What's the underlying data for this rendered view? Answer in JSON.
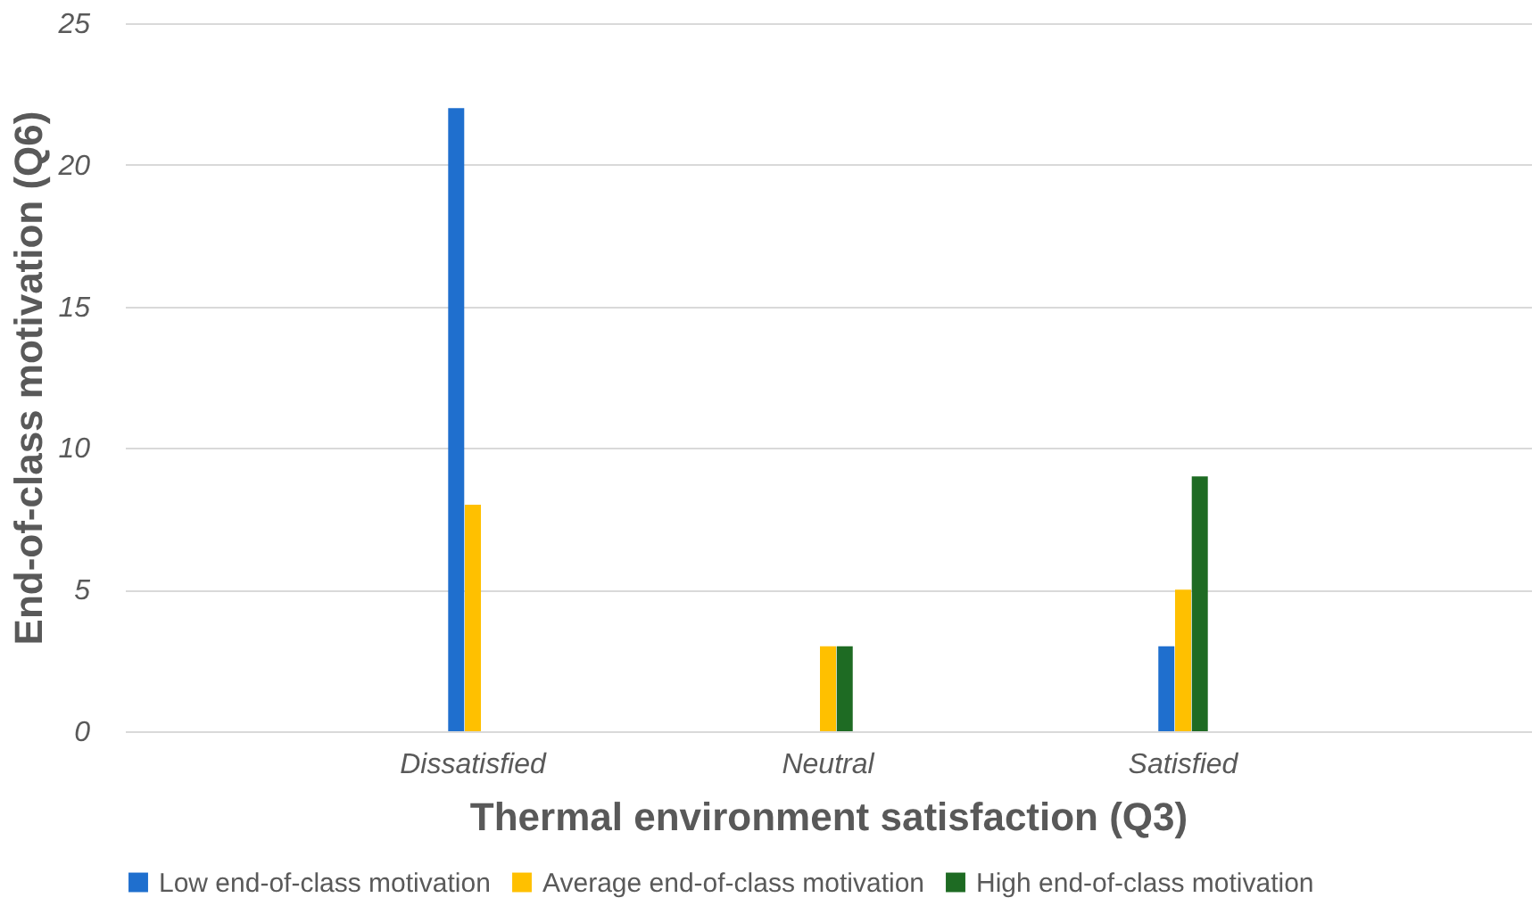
{
  "chart_data": {
    "type": "bar",
    "xlabel": "Thermal environment satisfaction (Q3)",
    "ylabel": "End-of-class motivation (Q6)",
    "categories": [
      "Dissatisfied",
      "Neutral",
      "Satisfied"
    ],
    "series": [
      {
        "name": "Low end-of-class motivation",
        "color": "#1f6fce",
        "values": [
          22,
          0,
          3
        ]
      },
      {
        "name": "Average end-of-class motivation",
        "color": "#ffc000",
        "values": [
          8,
          3,
          5
        ]
      },
      {
        "name": "High end-of-class motivation",
        "color": "#1e6b23",
        "values": [
          0,
          3,
          9
        ]
      }
    ],
    "ylim": [
      0,
      25
    ],
    "yticks": [
      0,
      5,
      10,
      15,
      20,
      25
    ],
    "grid": "y",
    "legend": "bottom"
  }
}
